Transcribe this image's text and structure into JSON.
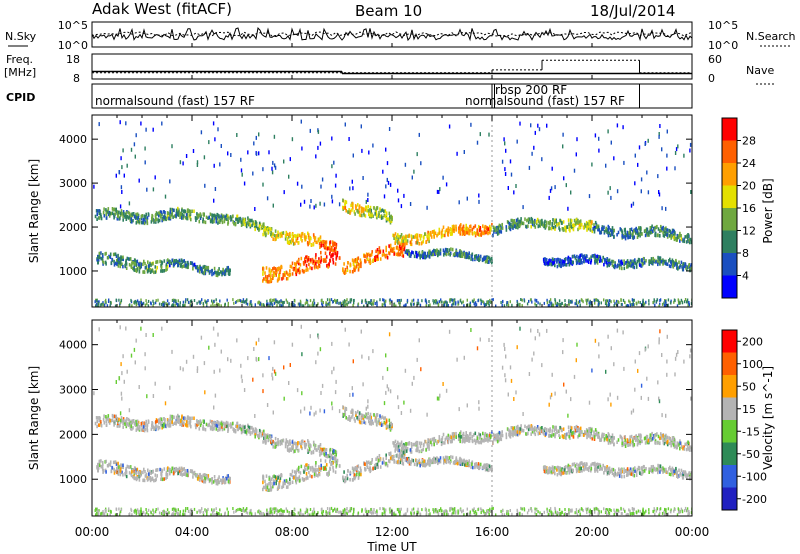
{
  "header": {
    "radar": "Adak West (fitACF)",
    "beam": "Beam 10",
    "date": "18/Jul/2014"
  },
  "top_panels": {
    "nsky_label": "N.Sky",
    "nsearch_label": "N.Search",
    "noise_ticks_left": [
      "10^5",
      "10^0"
    ],
    "noise_ticks_right": [
      "10^5",
      "10^0"
    ],
    "freq_label_1": "Freq.",
    "freq_label_2": "[MHz]",
    "freq_ticks": [
      "18",
      "8"
    ],
    "nave_label": "Nave",
    "nave_ticks": [
      "60",
      "0"
    ],
    "cpid_label": "CPID",
    "cpid_programs": [
      {
        "name": "normalsound (fast) 157 RF",
        "start_h": 0,
        "end_h": 16
      },
      {
        "name": "rbsp 200 RF",
        "start_h": 16,
        "end_h": 16.1
      },
      {
        "name": "normalsound (fast) 157 RF",
        "start_h": 16.1,
        "end_h": 21.9
      }
    ],
    "freq_steps": [
      {
        "start_h": 0,
        "end_h": 10,
        "mhz": 11.0
      },
      {
        "start_h": 10,
        "end_h": 24,
        "mhz": 10.2
      }
    ],
    "nave_steps": [
      {
        "start_h": 0,
        "end_h": 16,
        "value": 15
      },
      {
        "start_h": 16,
        "end_h": 18,
        "value": 22
      },
      {
        "start_h": 18,
        "end_h": 21.9,
        "value": 45
      },
      {
        "start_h": 21.9,
        "end_h": 24,
        "value": 15
      }
    ]
  },
  "chart_data": [
    {
      "type": "heatmap",
      "title": "Power",
      "xlabel": "Time UT",
      "ylabel": "Slant Range [km]",
      "xlim_hours": [
        0,
        24
      ],
      "ylim_km": [
        180,
        4550
      ],
      "x_ticks": [
        "00:00",
        "04:00",
        "08:00",
        "12:00",
        "16:00",
        "20:00",
        "00:00"
      ],
      "y_ticks": [
        "1000",
        "2000",
        "3000",
        "4000"
      ],
      "colorbar_label": "Power [dB]",
      "colorbar_ticks": [
        "4",
        "8",
        "12",
        "16",
        "20",
        "24",
        "28"
      ],
      "colorbar_colors": [
        "#0000ff",
        "#1a4fc0",
        "#2e7f60",
        "#6fa840",
        "#e4e000",
        "#ff9f00",
        "#ff6000",
        "#ff0000"
      ]
    },
    {
      "type": "heatmap",
      "title": "Velocity",
      "xlabel": "Time UT",
      "ylabel": "Slant Range [km]",
      "xlim_hours": [
        0,
        24
      ],
      "ylim_km": [
        180,
        4550
      ],
      "x_ticks": [
        "00:00",
        "04:00",
        "08:00",
        "12:00",
        "16:00",
        "20:00",
        "00:00"
      ],
      "y_ticks": [
        "1000",
        "2000",
        "3000",
        "4000"
      ],
      "colorbar_label": "Velocity [m s^-1]",
      "colorbar_ticks": [
        "200",
        "100",
        "50",
        "15",
        "-15",
        "-50",
        "-100",
        "-200"
      ],
      "colorbar_colors": [
        "#2020c0",
        "#3060e0",
        "#2e8b57",
        "#66cc33",
        "#b4b4b4",
        "#ff9f00",
        "#ff6000",
        "#ff0000"
      ]
    }
  ],
  "scatter_bands": [
    {
      "t0": 0.1,
      "t1": 4.6,
      "r0": 2250,
      "r1": 2250,
      "w": 110,
      "p0": 10,
      "p1": 12
    },
    {
      "t0": 4.6,
      "t1": 6.8,
      "r0": 2300,
      "r1": 1950,
      "w": 100,
      "p0": 10,
      "p1": 14
    },
    {
      "t0": 6.8,
      "t1": 9.8,
      "r0": 1950,
      "r1": 1500,
      "w": 130,
      "p0": 16,
      "p1": 26
    },
    {
      "t0": 10.0,
      "t1": 12.0,
      "r0": 2550,
      "r1": 2150,
      "w": 120,
      "p0": 20,
      "p1": 14
    },
    {
      "t0": 12.0,
      "t1": 16.0,
      "r0": 1700,
      "r1": 2000,
      "w": 110,
      "p0": 18,
      "p1": 24
    },
    {
      "t0": 16.0,
      "t1": 18.0,
      "r0": 1950,
      "r1": 2100,
      "w": 100,
      "p0": 10,
      "p1": 12
    },
    {
      "t0": 18.0,
      "t1": 20.0,
      "r0": 2150,
      "r1": 1950,
      "w": 130,
      "p0": 12,
      "p1": 18
    },
    {
      "t0": 20.0,
      "t1": 24.0,
      "r0": 1950,
      "r1": 1800,
      "w": 110,
      "p0": 8,
      "p1": 12
    },
    {
      "t0": 0.1,
      "t1": 3.0,
      "r0": 1250,
      "r1": 1100,
      "w": 130,
      "p0": 8,
      "p1": 14
    },
    {
      "t0": 3.0,
      "t1": 5.5,
      "r0": 1150,
      "r1": 1000,
      "w": 80,
      "p0": 8,
      "p1": 10
    },
    {
      "t0": 6.8,
      "t1": 9.9,
      "r0": 900,
      "r1": 1300,
      "w": 170,
      "p0": 22,
      "p1": 28
    },
    {
      "t0": 10.0,
      "t1": 12.5,
      "r0": 1100,
      "r1": 1500,
      "w": 140,
      "p0": 22,
      "p1": 26
    },
    {
      "t0": 12.5,
      "t1": 16.0,
      "r0": 1450,
      "r1": 1300,
      "w": 70,
      "p0": 8,
      "p1": 10
    },
    {
      "t0": 18.0,
      "t1": 24.0,
      "r0": 1250,
      "r1": 1150,
      "w": 90,
      "p0": 6,
      "p1": 10
    }
  ]
}
